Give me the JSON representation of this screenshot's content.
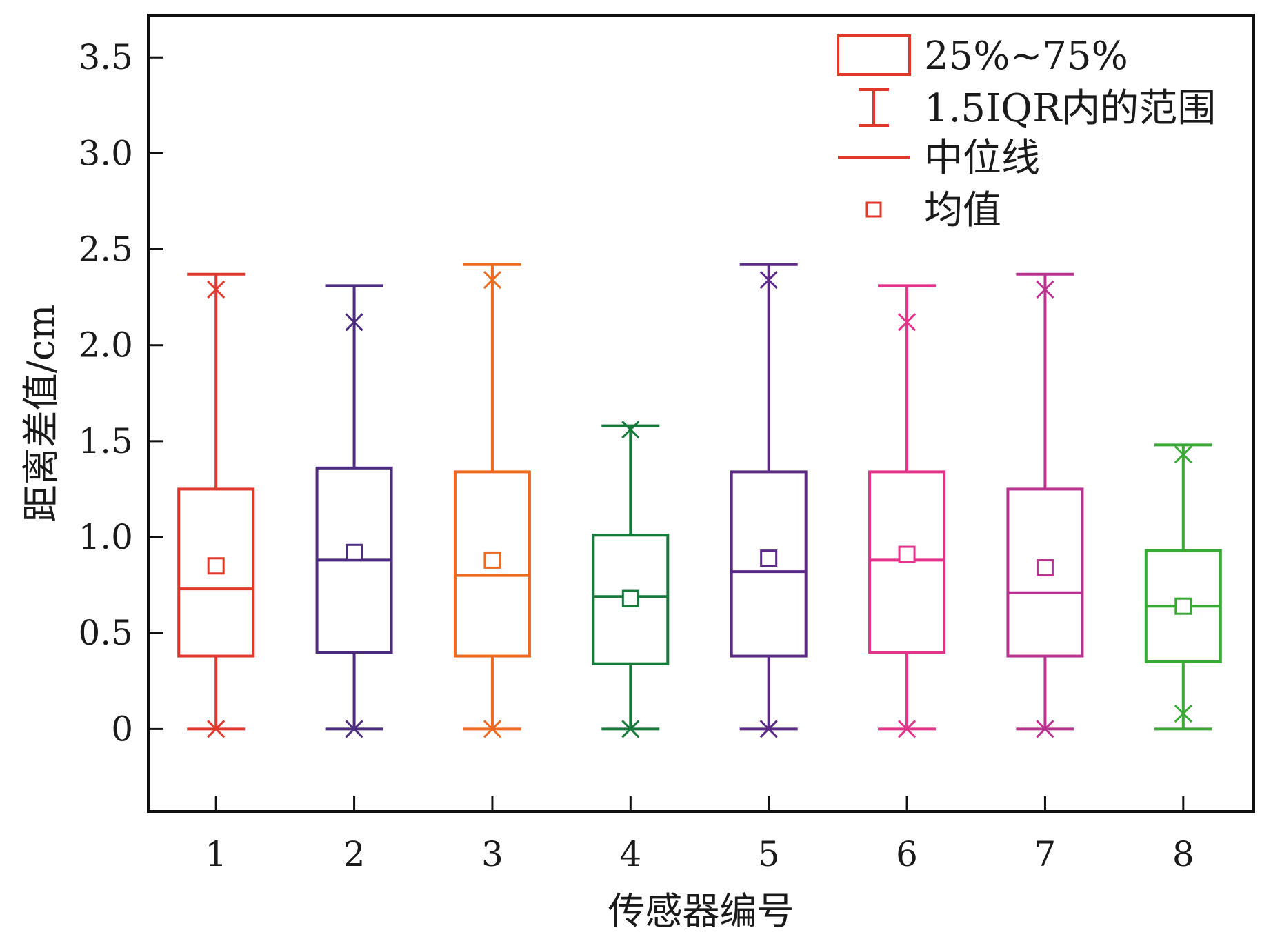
{
  "chart_data": {
    "type": "boxplot",
    "title": "",
    "xlabel": "传感器编号",
    "ylabel": "距离差值/cm",
    "categories": [
      "1",
      "2",
      "3",
      "4",
      "5",
      "6",
      "7",
      "8"
    ],
    "ylim": [
      -0.43,
      3.72
    ],
    "yticks": [
      0,
      0.5,
      1.0,
      1.5,
      2.0,
      2.5,
      3.0,
      3.5
    ],
    "ytick_labels": [
      "0",
      "0.5",
      "1.0",
      "1.5",
      "2.0",
      "2.5",
      "3.0",
      "3.5"
    ],
    "grid": false,
    "legend_position": "top-right",
    "legend": [
      {
        "kind": "box",
        "label": "25%~75%"
      },
      {
        "kind": "whisker",
        "label": "1.5IQR内的范围"
      },
      {
        "kind": "median",
        "label": "中位线"
      },
      {
        "kind": "mean",
        "label": "均值"
      }
    ],
    "legend_color": "#e0392b",
    "boxes": [
      {
        "name": "1",
        "color": "#e0392b",
        "whisker_low": 0.0,
        "q1": 0.38,
        "median": 0.73,
        "q3": 1.25,
        "whisker_high": 2.37,
        "mean": 0.85,
        "min": 0.0,
        "max": 2.29
      },
      {
        "name": "2",
        "color": "#4b2c7f",
        "whisker_low": 0.0,
        "q1": 0.4,
        "median": 0.88,
        "q3": 1.36,
        "whisker_high": 2.31,
        "mean": 0.92,
        "min": 0.0,
        "max": 2.12
      },
      {
        "name": "3",
        "color": "#ee6a1f",
        "whisker_low": 0.0,
        "q1": 0.38,
        "median": 0.8,
        "q3": 1.34,
        "whisker_high": 2.42,
        "mean": 0.88,
        "min": 0.0,
        "max": 2.34
      },
      {
        "name": "4",
        "color": "#157a3a",
        "whisker_low": 0.0,
        "q1": 0.34,
        "median": 0.69,
        "q3": 1.01,
        "whisker_high": 1.58,
        "mean": 0.68,
        "min": 0.0,
        "max": 1.56
      },
      {
        "name": "5",
        "color": "#5a2a86",
        "whisker_low": 0.0,
        "q1": 0.38,
        "median": 0.82,
        "q3": 1.34,
        "whisker_high": 2.42,
        "mean": 0.89,
        "min": 0.0,
        "max": 2.34
      },
      {
        "name": "6",
        "color": "#e4338b",
        "whisker_low": 0.0,
        "q1": 0.4,
        "median": 0.88,
        "q3": 1.34,
        "whisker_high": 2.31,
        "mean": 0.91,
        "min": 0.0,
        "max": 2.12
      },
      {
        "name": "7",
        "color": "#b8338f",
        "whisker_low": 0.0,
        "q1": 0.38,
        "median": 0.71,
        "q3": 1.25,
        "whisker_high": 2.37,
        "mean": 0.84,
        "min": 0.0,
        "max": 2.29
      },
      {
        "name": "8",
        "color": "#3aa835",
        "whisker_low": 0.0,
        "q1": 0.35,
        "median": 0.64,
        "q3": 0.93,
        "whisker_high": 1.48,
        "mean": 0.64,
        "min": 0.08,
        "max": 1.43
      }
    ]
  }
}
